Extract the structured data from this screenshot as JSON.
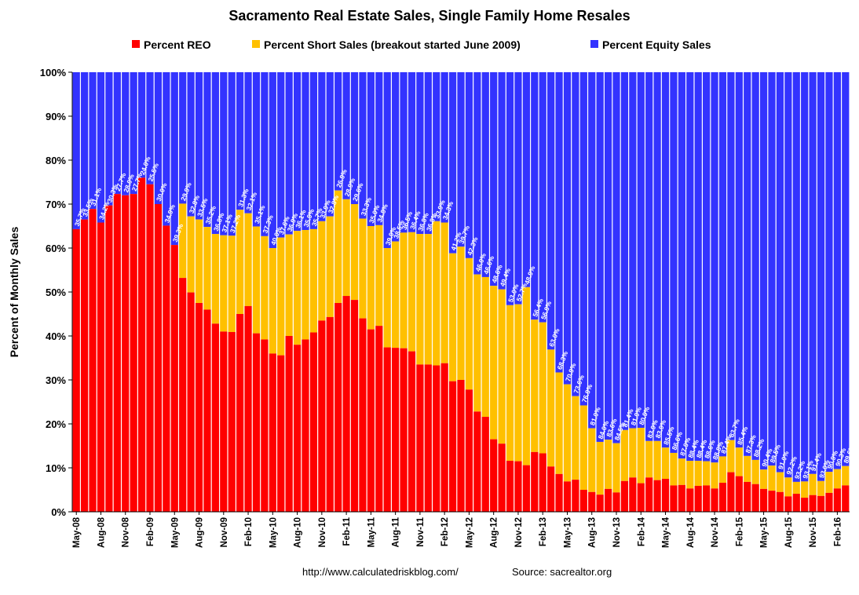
{
  "chart_data": {
    "type": "bar",
    "stacked": true,
    "title": "Sacramento Real Estate Sales, Single Family Home Resales",
    "ylabel": "Percent of Monthly Sales",
    "xlabel": "",
    "ylim": [
      0,
      100
    ],
    "yticks": [
      "0%",
      "10%",
      "20%",
      "30%",
      "40%",
      "50%",
      "60%",
      "70%",
      "80%",
      "90%",
      "100%"
    ],
    "colors": {
      "reo": "#ff0000",
      "short": "#ffc000",
      "equity": "#3333ff"
    },
    "legend": [
      "Percent REO",
      "Percent Short Sales (breakout started June 2009)",
      "Percent Equity Sales"
    ],
    "legend_position": "top",
    "x_tick_labels": [
      "May-08",
      "Aug-08",
      "Nov-08",
      "Feb-09",
      "May-09",
      "Aug-09",
      "Nov-09",
      "Feb-10",
      "May-10",
      "Aug-10",
      "Nov-10",
      "Feb-11",
      "May-11",
      "Aug-11",
      "Nov-11",
      "Feb-12",
      "May-12",
      "Aug-12",
      "Nov-12",
      "Feb-13",
      "May-13",
      "Aug-13",
      "Nov-13",
      "Feb-14",
      "May-14",
      "Aug-14",
      "Nov-14",
      "Feb-15",
      "May-15",
      "Aug-15",
      "Nov-15",
      "Feb-16"
    ],
    "reo": [
      64.3,
      66.5,
      68.9,
      65.8,
      69.7,
      72.3,
      72.0,
      72.3,
      76.0,
      74.5,
      70.0,
      65.1,
      60.7,
      53.2,
      49.9,
      47.5,
      46.0,
      42.8,
      41.0,
      40.9,
      45.0,
      46.8,
      40.6,
      39.2,
      36.0,
      35.6,
      40.0,
      38.0,
      39.2,
      40.8,
      43.5,
      44.3,
      47.5,
      49.1,
      48.2,
      44.0,
      41.5,
      42.3,
      37.4,
      37.3,
      37.2,
      36.5,
      33.5,
      33.5,
      33.3,
      33.8,
      29.7,
      30.0,
      27.8,
      22.8,
      21.6,
      16.5,
      15.5,
      11.6,
      11.5,
      10.6,
      13.6,
      13.3,
      10.3,
      8.6,
      6.9,
      7.3,
      5.0,
      4.5,
      3.9,
      5.2,
      4.4,
      7.0,
      7.8,
      6.5,
      7.8,
      7.2,
      7.5,
      6.0,
      6.1,
      5.3,
      5.9,
      6.0,
      5.3,
      6.6,
      9.0,
      8.1,
      6.8,
      6.3,
      5.2,
      4.8,
      4.5,
      3.5,
      4.1,
      3.2,
      3.8,
      3.6,
      4.3,
      5.3,
      6.0
    ],
    "short": [
      0,
      0,
      0,
      0,
      0,
      0,
      0,
      0,
      0,
      0,
      0,
      0,
      0,
      16.9,
      17.3,
      19.0,
      18.8,
      20.4,
      21.9,
      21.9,
      23.7,
      21.1,
      24.3,
      23.5,
      24.0,
      26.8,
      23.1,
      25.9,
      24.9,
      23.5,
      22.6,
      22.9,
      25.6,
      22.0,
      21.8,
      22.7,
      23.5,
      22.9,
      22.6,
      24.2,
      26.3,
      27.1,
      29.7,
      29.7,
      32.8,
      32.0,
      29.1,
      30.3,
      29.9,
      31.2,
      31.8,
      34.9,
      35.1,
      35.4,
      35.7,
      40.5,
      30.1,
      29.8,
      26.6,
      23.1,
      22.1,
      19.0,
      19.2,
      14.5,
      12.0,
      11.2,
      11.2,
      11.6,
      11.2,
      12.6,
      8.3,
      8.9,
      7.1,
      7.4,
      6.0,
      6.3,
      5.7,
      5.5,
      5.9,
      6.0,
      7.3,
      6.5,
      5.9,
      5.5,
      4.4,
      5.7,
      4.5,
      4.3,
      2.7,
      3.7,
      4.8,
      3.4,
      4.8,
      4.4,
      4.4
    ],
    "equity_labels": [
      "35.7%",
      "33.5%",
      "31.1%",
      "34.2%",
      "30.3%",
      "27.7%",
      "28.0%",
      "27.7%",
      "24.0%",
      "25.5%",
      "30.0%",
      "34.9%",
      "39.3%",
      "29.9%",
      "32.8%",
      "33.5%",
      "35.2%",
      "36.8%",
      "37.1%",
      "37.2%",
      "31.3%",
      "32.1%",
      "35.1%",
      "37.3%",
      "40.0%",
      "37.6%",
      "36.9%",
      "36.1%",
      "35.9%",
      "35.7%",
      "33.9%",
      "32.8%",
      "26.9%",
      "28.9%",
      "29.6%",
      "33.3%",
      "35.0%",
      "34.8%",
      "39.9%",
      "38.5%",
      "36.5%",
      "36.4%",
      "36.8%",
      "36.8%",
      "33.9%",
      "34.3%",
      "41.2%",
      "39.7%",
      "42.3%",
      "46.0%",
      "46.6%",
      "48.6%",
      "49.4%",
      "53.0%",
      "52.7%",
      "48.9%",
      "56.4%",
      "56.9%",
      "63.0%",
      "68.3%",
      "70.9%",
      "73.6%",
      "76.9%",
      "81.0%",
      "84.0%",
      "83.6%",
      "84.5%",
      "81.4%",
      "81.0%",
      "80.9%",
      "83.9%",
      "83.9%",
      "85.5%",
      "86.6%",
      "87.9%",
      "88.4%",
      "88.4%",
      "88.6%",
      "88.8%",
      "87.4%",
      "83.7%",
      "85.4%",
      "87.3%",
      "88.2%",
      "90.4%",
      "89.5%",
      "91.0%",
      "92.2%",
      "93.2%",
      "93.1%",
      "91.4%",
      "93.0%",
      "90.9%",
      "90.3%",
      "89.6%"
    ]
  },
  "footer": {
    "url": "http://www.calculatedriskblog.com/",
    "source": "Source: sacrealtor.org"
  }
}
